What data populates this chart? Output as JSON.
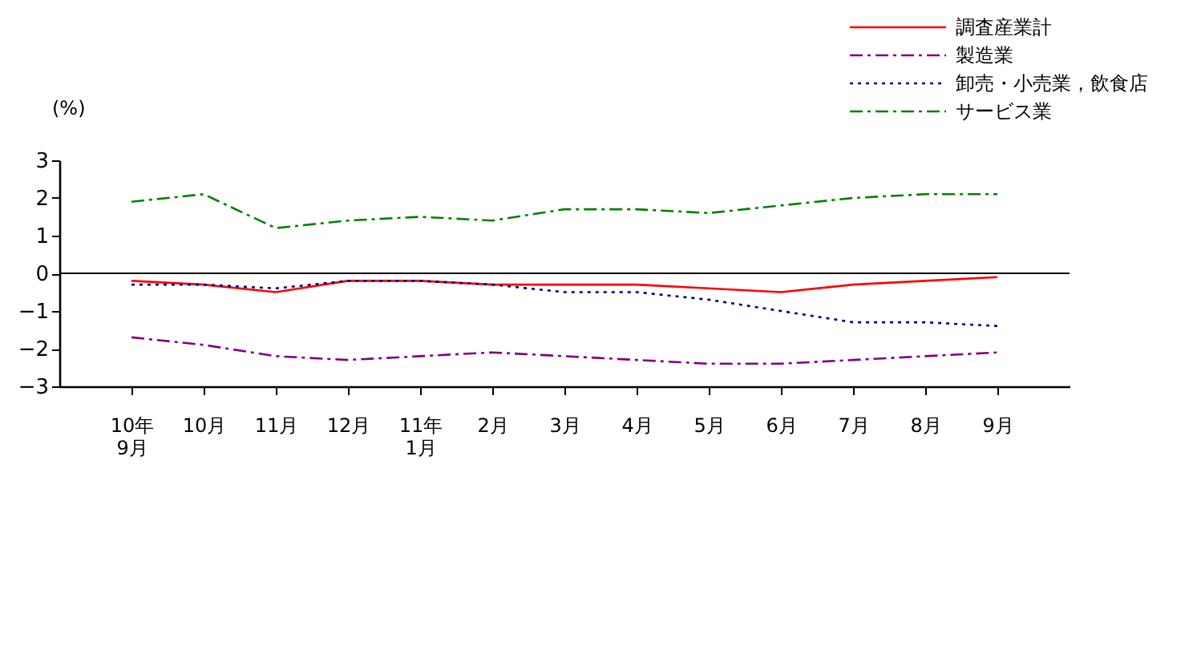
{
  "chart_data": {
    "type": "line",
    "ylabel": "(%)",
    "categories": [
      "10年\n9月",
      "10月",
      "11月",
      "12月",
      "11年\n1月",
      "2月",
      "3月",
      "4月",
      "5月",
      "6月",
      "7月",
      "8月",
      "9月"
    ],
    "series": [
      {
        "name": "調査産業計",
        "color": "#ff0000",
        "line_style": "solid",
        "values": [
          -0.2,
          -0.3,
          -0.5,
          -0.2,
          -0.2,
          -0.3,
          -0.3,
          -0.3,
          -0.4,
          -0.5,
          -0.3,
          -0.2,
          -0.1
        ]
      },
      {
        "name": "製造業",
        "color": "#800080",
        "line_style": "dashed",
        "values": [
          -1.7,
          -1.9,
          -2.2,
          -2.3,
          -2.2,
          -2.1,
          -2.2,
          -2.3,
          -2.4,
          -2.4,
          -2.3,
          -2.2,
          -2.1
        ]
      },
      {
        "name": "卸売・小売業，飲食店",
        "color": "#000080",
        "line_style": "dotted",
        "values": [
          -0.3,
          -0.3,
          -0.4,
          -0.2,
          -0.2,
          -0.3,
          -0.5,
          -0.5,
          -0.7,
          -1.0,
          -1.3,
          -1.3,
          -1.4
        ]
      },
      {
        "name": "サービス業",
        "color": "#008000",
        "line_style": "dashed",
        "values": [
          1.9,
          2.1,
          1.2,
          1.4,
          1.5,
          1.4,
          1.7,
          1.7,
          1.6,
          1.8,
          2.0,
          2.1,
          2.1
        ]
      }
    ],
    "ylim": [
      -3,
      3
    ],
    "yticks": [
      -3,
      -2,
      -1,
      0,
      1,
      2,
      3
    ],
    "ref_lines": [
      {
        "axis": "y",
        "value": 0,
        "color": "#000000"
      }
    ],
    "grid": false,
    "legend": "top right",
    "marker": "none"
  }
}
